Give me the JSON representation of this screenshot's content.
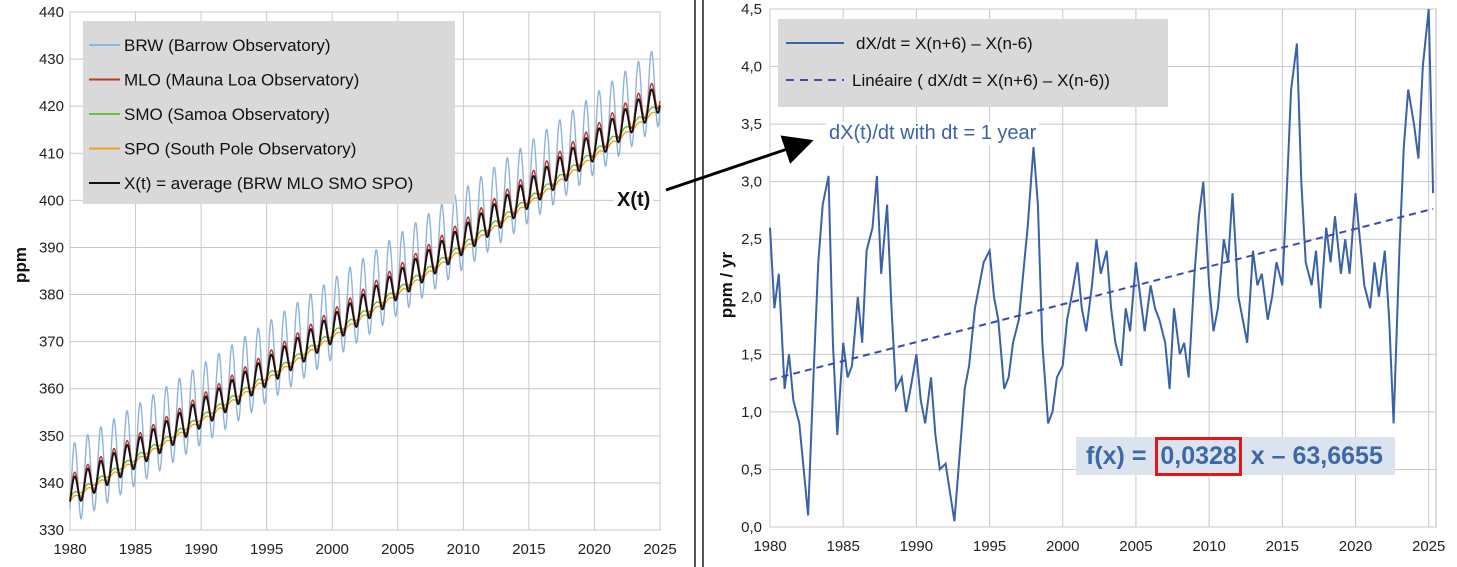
{
  "left_chart": {
    "ylabel": "ppm",
    "xlim": [
      1980,
      2025
    ],
    "ylim": [
      330,
      440
    ],
    "x_ticks": [
      "1980",
      "1985",
      "1990",
      "1995",
      "2000",
      "2005",
      "2010",
      "2015",
      "2020",
      "2025"
    ],
    "y_ticks": [
      "330",
      "340",
      "350",
      "360",
      "370",
      "380",
      "390",
      "400",
      "410",
      "420",
      "430",
      "440"
    ],
    "legend": [
      {
        "label": "BRW (Barrow Observatory)",
        "color": "#8fb4d9"
      },
      {
        "label": "MLO (Mauna Loa Observatory)",
        "color": "#c0392b"
      },
      {
        "label": "SMO (Samoa Observatory)",
        "color": "#6cbf3a"
      },
      {
        "label": "SPO (South Pole Observatory)",
        "color": "#f0a020"
      },
      {
        "label": "X(t) = average (BRW MLO SMO SPO)",
        "color": "#111111"
      }
    ],
    "annotation": "X(t)"
  },
  "right_chart": {
    "ylabel": "ppm / yr",
    "xlim": [
      1980,
      2025.5
    ],
    "ylim": [
      0,
      4.5
    ],
    "x_ticks": [
      "1980",
      "1985",
      "1990",
      "1995",
      "2000",
      "2005",
      "2010",
      "2015",
      "2020",
      "2025"
    ],
    "y_ticks": [
      "0,0",
      "0,5",
      "1,0",
      "1,5",
      "2,0",
      "2,5",
      "3,0",
      "3,5",
      "4,0",
      "4,5"
    ],
    "legend": [
      {
        "label": "dX/dt =  X(n+6) – X(n-6)",
        "color": "#3a62a7",
        "style": "solid"
      },
      {
        "label": "Linéaire ( dX/dt =  X(n+6) – X(n-6))",
        "color": "#3949b5",
        "style": "dashed"
      }
    ],
    "subtitle": "dX(t)/dt with dt = 1 year",
    "formula_prefix": "f(x) = ",
    "formula_slope": "0,0328",
    "formula_suffix": " x – 63,6655",
    "trend": {
      "slope": 0.0328,
      "intercept": -63.6655
    }
  },
  "chart_data": [
    {
      "type": "line",
      "title": "",
      "xlabel": "",
      "ylabel": "ppm",
      "xlim": [
        1980,
        2025
      ],
      "ylim": [
        330,
        440
      ],
      "series": [
        {
          "name": "BRW (Barrow Observatory)",
          "trend_start": 339.5,
          "trend_end": 424.5,
          "seasonal_amplitude": 8.5
        },
        {
          "name": "MLO (Mauna Loa Observatory)",
          "trend_start": 338.5,
          "trend_end": 423.0,
          "seasonal_amplitude": 3.2
        },
        {
          "name": "SMO (Samoa Observatory)",
          "trend_start": 337.0,
          "trend_end": 420.5,
          "seasonal_amplitude": 0.5
        },
        {
          "name": "SPO (South Pole Observatory)",
          "trend_start": 336.3,
          "trend_end": 419.5,
          "seasonal_amplitude": 0.4
        },
        {
          "name": "X(t) = average (BRW MLO SMO SPO)",
          "trend_start": 337.8,
          "trend_end": 421.9,
          "seasonal_amplitude": 3.0
        }
      ]
    },
    {
      "type": "line",
      "title": "dX(t)/dt with dt = 1 year",
      "xlabel": "",
      "ylabel": "ppm / yr",
      "xlim": [
        1980,
        2025.5
      ],
      "ylim": [
        0,
        4.5
      ],
      "series": [
        {
          "name": "dX/dt =  X(n+6) – X(n-6)",
          "x": [
            1980.0,
            1980.3,
            1980.6,
            1981.0,
            1981.3,
            1981.6,
            1982.0,
            1982.3,
            1982.6,
            1983.0,
            1983.3,
            1983.6,
            1984.0,
            1984.3,
            1984.6,
            1985.0,
            1985.3,
            1985.6,
            1986.0,
            1986.3,
            1986.6,
            1987.0,
            1987.3,
            1987.6,
            1988.0,
            1988.3,
            1988.6,
            1989.0,
            1989.3,
            1989.6,
            1990.0,
            1990.3,
            1990.6,
            1991.0,
            1991.3,
            1991.6,
            1992.0,
            1992.3,
            1992.6,
            1993.0,
            1993.3,
            1993.6,
            1994.0,
            1994.3,
            1994.6,
            1995.0,
            1995.3,
            1995.6,
            1996.0,
            1996.3,
            1996.6,
            1997.0,
            1997.3,
            1997.6,
            1998.0,
            1998.3,
            1998.6,
            1999.0,
            1999.3,
            1999.6,
            2000.0,
            2000.3,
            2000.6,
            2001.0,
            2001.3,
            2001.6,
            2002.0,
            2002.3,
            2002.6,
            2003.0,
            2003.3,
            2003.6,
            2004.0,
            2004.3,
            2004.6,
            2005.0,
            2005.3,
            2005.6,
            2006.0,
            2006.3,
            2006.6,
            2007.0,
            2007.3,
            2007.6,
            2008.0,
            2008.3,
            2008.6,
            2009.0,
            2009.3,
            2009.6,
            2010.0,
            2010.3,
            2010.6,
            2011.0,
            2011.3,
            2011.6,
            2012.0,
            2012.3,
            2012.6,
            2013.0,
            2013.3,
            2013.6,
            2014.0,
            2014.3,
            2014.6,
            2015.0,
            2015.3,
            2015.6,
            2016.0,
            2016.3,
            2016.6,
            2017.0,
            2017.3,
            2017.6,
            2018.0,
            2018.3,
            2018.6,
            2019.0,
            2019.3,
            2019.6,
            2020.0,
            2020.3,
            2020.6,
            2021.0,
            2021.3,
            2021.6,
            2022.0,
            2022.3,
            2022.6,
            2023.0,
            2023.3,
            2023.6,
            2024.0,
            2024.3,
            2024.6,
            2025.0,
            2025.3
          ],
          "values": [
            2.6,
            1.9,
            2.2,
            1.2,
            1.5,
            1.1,
            0.9,
            0.5,
            0.1,
            1.4,
            2.3,
            2.8,
            3.05,
            1.6,
            0.8,
            1.6,
            1.3,
            1.4,
            2.0,
            1.6,
            2.4,
            2.6,
            3.05,
            2.2,
            2.8,
            1.9,
            1.2,
            1.3,
            1.0,
            1.2,
            1.5,
            1.1,
            0.9,
            1.3,
            0.8,
            0.5,
            0.55,
            0.3,
            0.05,
            0.7,
            1.2,
            1.4,
            1.9,
            2.1,
            2.3,
            2.4,
            2.0,
            1.8,
            1.2,
            1.3,
            1.6,
            1.8,
            2.2,
            2.6,
            3.3,
            2.8,
            1.6,
            0.9,
            1.0,
            1.3,
            1.4,
            1.8,
            2.0,
            2.3,
            1.9,
            1.7,
            2.1,
            2.5,
            2.2,
            2.4,
            1.9,
            1.6,
            1.4,
            1.9,
            1.7,
            2.3,
            2.0,
            1.7,
            2.1,
            1.9,
            1.8,
            1.6,
            1.2,
            1.9,
            1.5,
            1.6,
            1.3,
            2.2,
            2.7,
            3.0,
            2.1,
            1.7,
            1.9,
            2.5,
            2.3,
            2.9,
            2.0,
            1.8,
            1.6,
            2.4,
            2.1,
            2.2,
            1.8,
            2.0,
            2.3,
            2.1,
            2.9,
            3.8,
            4.2,
            3.0,
            2.3,
            2.1,
            2.4,
            1.9,
            2.6,
            2.3,
            2.7,
            2.2,
            2.5,
            2.2,
            2.9,
            2.5,
            2.1,
            1.9,
            2.3,
            2.0,
            2.4,
            1.8,
            0.9,
            2.4,
            3.3,
            3.8,
            3.5,
            3.2,
            4.0,
            4.5,
            2.9
          ]
        }
      ]
    }
  ]
}
